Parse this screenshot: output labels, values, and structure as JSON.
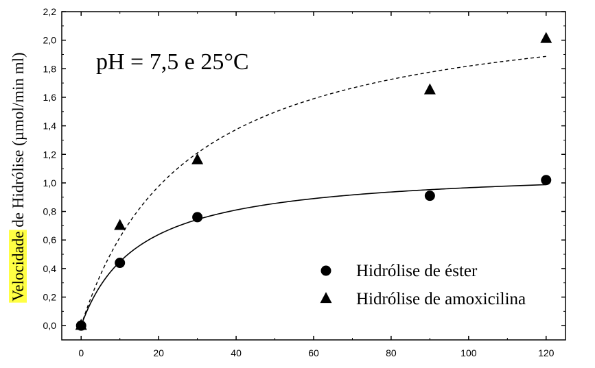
{
  "chart_data": {
    "type": "scatter",
    "annotation": "pH = 7,5 e 25°C",
    "ylabel_highlight": "Velocidade",
    "ylabel_rest": " de Hidrólise (µmol/min ml)",
    "xlabel": "",
    "xlim": [
      -5,
      125
    ],
    "ylim": [
      -0.1,
      2.2
    ],
    "xticks": [
      0,
      20,
      40,
      60,
      80,
      100,
      120
    ],
    "yticks": [
      0.0,
      0.2,
      0.4,
      0.6,
      0.8,
      1.0,
      1.2,
      1.4,
      1.6,
      1.8,
      2.0,
      2.2
    ],
    "xtick_labels": [
      "0",
      "20",
      "40",
      "60",
      "80",
      "100",
      "120"
    ],
    "ytick_labels": [
      "0,0",
      "0,2",
      "0,4",
      "0,6",
      "0,8",
      "1,0",
      "1,2",
      "1,4",
      "1,6",
      "1,8",
      "2,0",
      "2,2"
    ],
    "legend_placement": "bottom-right",
    "highlight_color": "#ffff44",
    "series": [
      {
        "name": "Hidrólise de éster",
        "marker": "circle",
        "line_style": "solid",
        "x": [
          0,
          10,
          30,
          90,
          120
        ],
        "y": [
          0.0,
          0.44,
          0.76,
          0.91,
          1.02
        ]
      },
      {
        "name": "Hidrólise de amoxicilina",
        "marker": "triangle",
        "line_style": "dashed",
        "x": [
          0,
          10,
          30,
          90,
          120
        ],
        "y": [
          0.0,
          0.7,
          1.16,
          1.65,
          2.01
        ]
      }
    ]
  }
}
